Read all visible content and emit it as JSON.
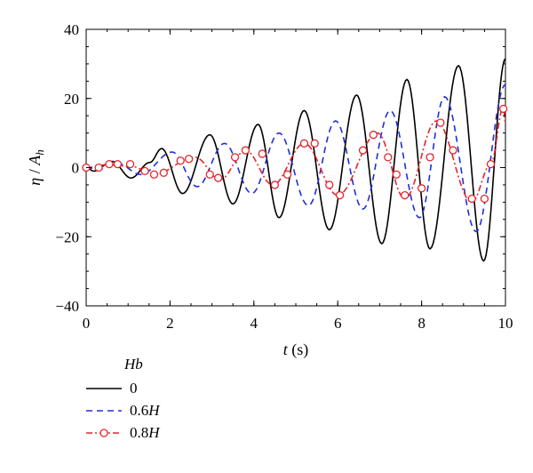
{
  "chart_data": {
    "type": "line",
    "xlabel": {
      "var": "t",
      "unit": " (s)"
    },
    "ylabel": {
      "var": "η",
      "sep": " / ",
      "sym": "A",
      "sub": "h"
    },
    "xlim": [
      0,
      10
    ],
    "ylim": [
      -40,
      40
    ],
    "x_ticks": [
      0,
      2,
      4,
      6,
      8,
      10
    ],
    "y_ticks": [
      -40,
      -20,
      0,
      20,
      40
    ],
    "y_tick_labels": [
      "−40",
      "−20",
      "0",
      "20",
      "40"
    ],
    "legend": {
      "title": "Hb",
      "placement": "bottom-left"
    },
    "series": [
      {
        "name": "0",
        "color": "#000000",
        "style": "solid",
        "marker": "none",
        "extrema": [
          [
            0,
            0
          ],
          [
            0.18,
            -1
          ],
          [
            0.62,
            1.8
          ],
          [
            1.07,
            -3
          ],
          [
            1.52,
            1.5
          ],
          [
            1.8,
            5.5
          ],
          [
            2.3,
            -7.5
          ],
          [
            2.95,
            9.5
          ],
          [
            3.5,
            -10.5
          ],
          [
            4.1,
            12.5
          ],
          [
            4.6,
            -14.5
          ],
          [
            5.2,
            16.5
          ],
          [
            5.8,
            -18
          ],
          [
            6.45,
            21
          ],
          [
            7.05,
            -22
          ],
          [
            7.65,
            25.5
          ],
          [
            8.2,
            -23.5
          ],
          [
            8.88,
            29.5
          ],
          [
            9.48,
            -27
          ],
          [
            10,
            31.5
          ]
        ]
      },
      {
        "name": "0.6H",
        "color": "#1f2fd6",
        "style": "dashed",
        "marker": "none",
        "extrema": [
          [
            0,
            0
          ],
          [
            0.3,
            -0.5
          ],
          [
            0.75,
            1.2
          ],
          [
            1.3,
            -2
          ],
          [
            2.05,
            4.5
          ],
          [
            2.65,
            -5.5
          ],
          [
            3.3,
            7
          ],
          [
            3.95,
            -7.5
          ],
          [
            4.6,
            10
          ],
          [
            5.3,
            -11
          ],
          [
            5.95,
            13.5
          ],
          [
            6.6,
            -12
          ],
          [
            7.25,
            16.5
          ],
          [
            7.95,
            -14.5
          ],
          [
            8.55,
            20.5
          ],
          [
            9.3,
            -18.5
          ],
          [
            10,
            24
          ]
        ]
      },
      {
        "name": "0.8H",
        "color": "#e3262d",
        "style": "dashdot",
        "marker": "circle",
        "extrema": [
          [
            0,
            0
          ],
          [
            0.5,
            0.8
          ],
          [
            1.1,
            0.3
          ],
          [
            1.6,
            -2
          ],
          [
            2.6,
            3
          ],
          [
            3.2,
            -3.5
          ],
          [
            3.8,
            5
          ],
          [
            4.45,
            -5
          ],
          [
            5.2,
            7
          ],
          [
            6,
            -8
          ],
          [
            6.95,
            10
          ],
          [
            7.6,
            -9
          ],
          [
            8.35,
            13.5
          ],
          [
            9.2,
            -10
          ],
          [
            9.65,
            1
          ],
          [
            9.95,
            17.5
          ],
          [
            10,
            13
          ]
        ],
        "markers": [
          [
            0,
            0
          ],
          [
            0.3,
            0
          ],
          [
            0.55,
            1
          ],
          [
            0.75,
            1
          ],
          [
            1.05,
            1
          ],
          [
            1.4,
            -1
          ],
          [
            1.62,
            -2
          ],
          [
            1.85,
            -1.5
          ],
          [
            2.25,
            2
          ],
          [
            2.45,
            2.5
          ],
          [
            2.95,
            -2
          ],
          [
            3.15,
            -3
          ],
          [
            3.55,
            3
          ],
          [
            3.8,
            5
          ],
          [
            4.2,
            4
          ],
          [
            4.5,
            -5
          ],
          [
            4.8,
            -2
          ],
          [
            5.2,
            7
          ],
          [
            5.45,
            7
          ],
          [
            5.8,
            -5
          ],
          [
            6.05,
            -8
          ],
          [
            6.6,
            5
          ],
          [
            6.85,
            9.5
          ],
          [
            7.2,
            3
          ],
          [
            7.4,
            -2
          ],
          [
            7.6,
            -8
          ],
          [
            8.0,
            -6
          ],
          [
            8.2,
            3
          ],
          [
            8.45,
            13
          ],
          [
            8.75,
            5
          ],
          [
            9.2,
            -9
          ],
          [
            9.5,
            -9
          ],
          [
            9.65,
            1
          ],
          [
            9.95,
            17
          ]
        ]
      }
    ]
  }
}
